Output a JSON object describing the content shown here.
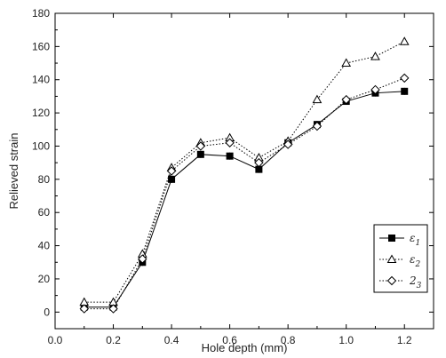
{
  "chart_data": {
    "type": "line",
    "xlabel": "Hole depth (mm)",
    "ylabel": "Relieved strain",
    "xlim": [
      0.0,
      1.3
    ],
    "ylim": [
      -10,
      180
    ],
    "xticks": [
      "0.0",
      "0.2",
      "0.4",
      "0.6",
      "0.8",
      "1.0",
      "1.2"
    ],
    "yticks": [
      "0",
      "20",
      "40",
      "60",
      "80",
      "100",
      "120",
      "140",
      "160",
      "180"
    ],
    "grid": false,
    "legend_position": "lower-right",
    "x": [
      0.1,
      0.2,
      0.3,
      0.4,
      0.5,
      0.6,
      0.7,
      0.8,
      0.9,
      1.0,
      1.1,
      1.2
    ],
    "series": [
      {
        "name": "ε1",
        "name_base": "ε",
        "name_sub": "1",
        "marker": "filled-square",
        "line": "solid",
        "values": [
          3,
          3,
          30,
          80,
          95,
          94,
          86,
          102,
          113,
          127,
          132,
          133
        ]
      },
      {
        "name": "ε2",
        "name_base": "ε",
        "name_sub": "2",
        "marker": "open-triangle",
        "line": "dotted",
        "values": [
          6,
          6,
          35,
          87,
          102,
          105,
          93,
          103,
          128,
          150,
          154,
          163
        ]
      },
      {
        "name": "23",
        "name_base": "2",
        "name_sub": "3",
        "marker": "open-diamond",
        "line": "dotted",
        "values": [
          2,
          2,
          32,
          85,
          100,
          102,
          90,
          101,
          112,
          128,
          134,
          141
        ]
      }
    ]
  }
}
